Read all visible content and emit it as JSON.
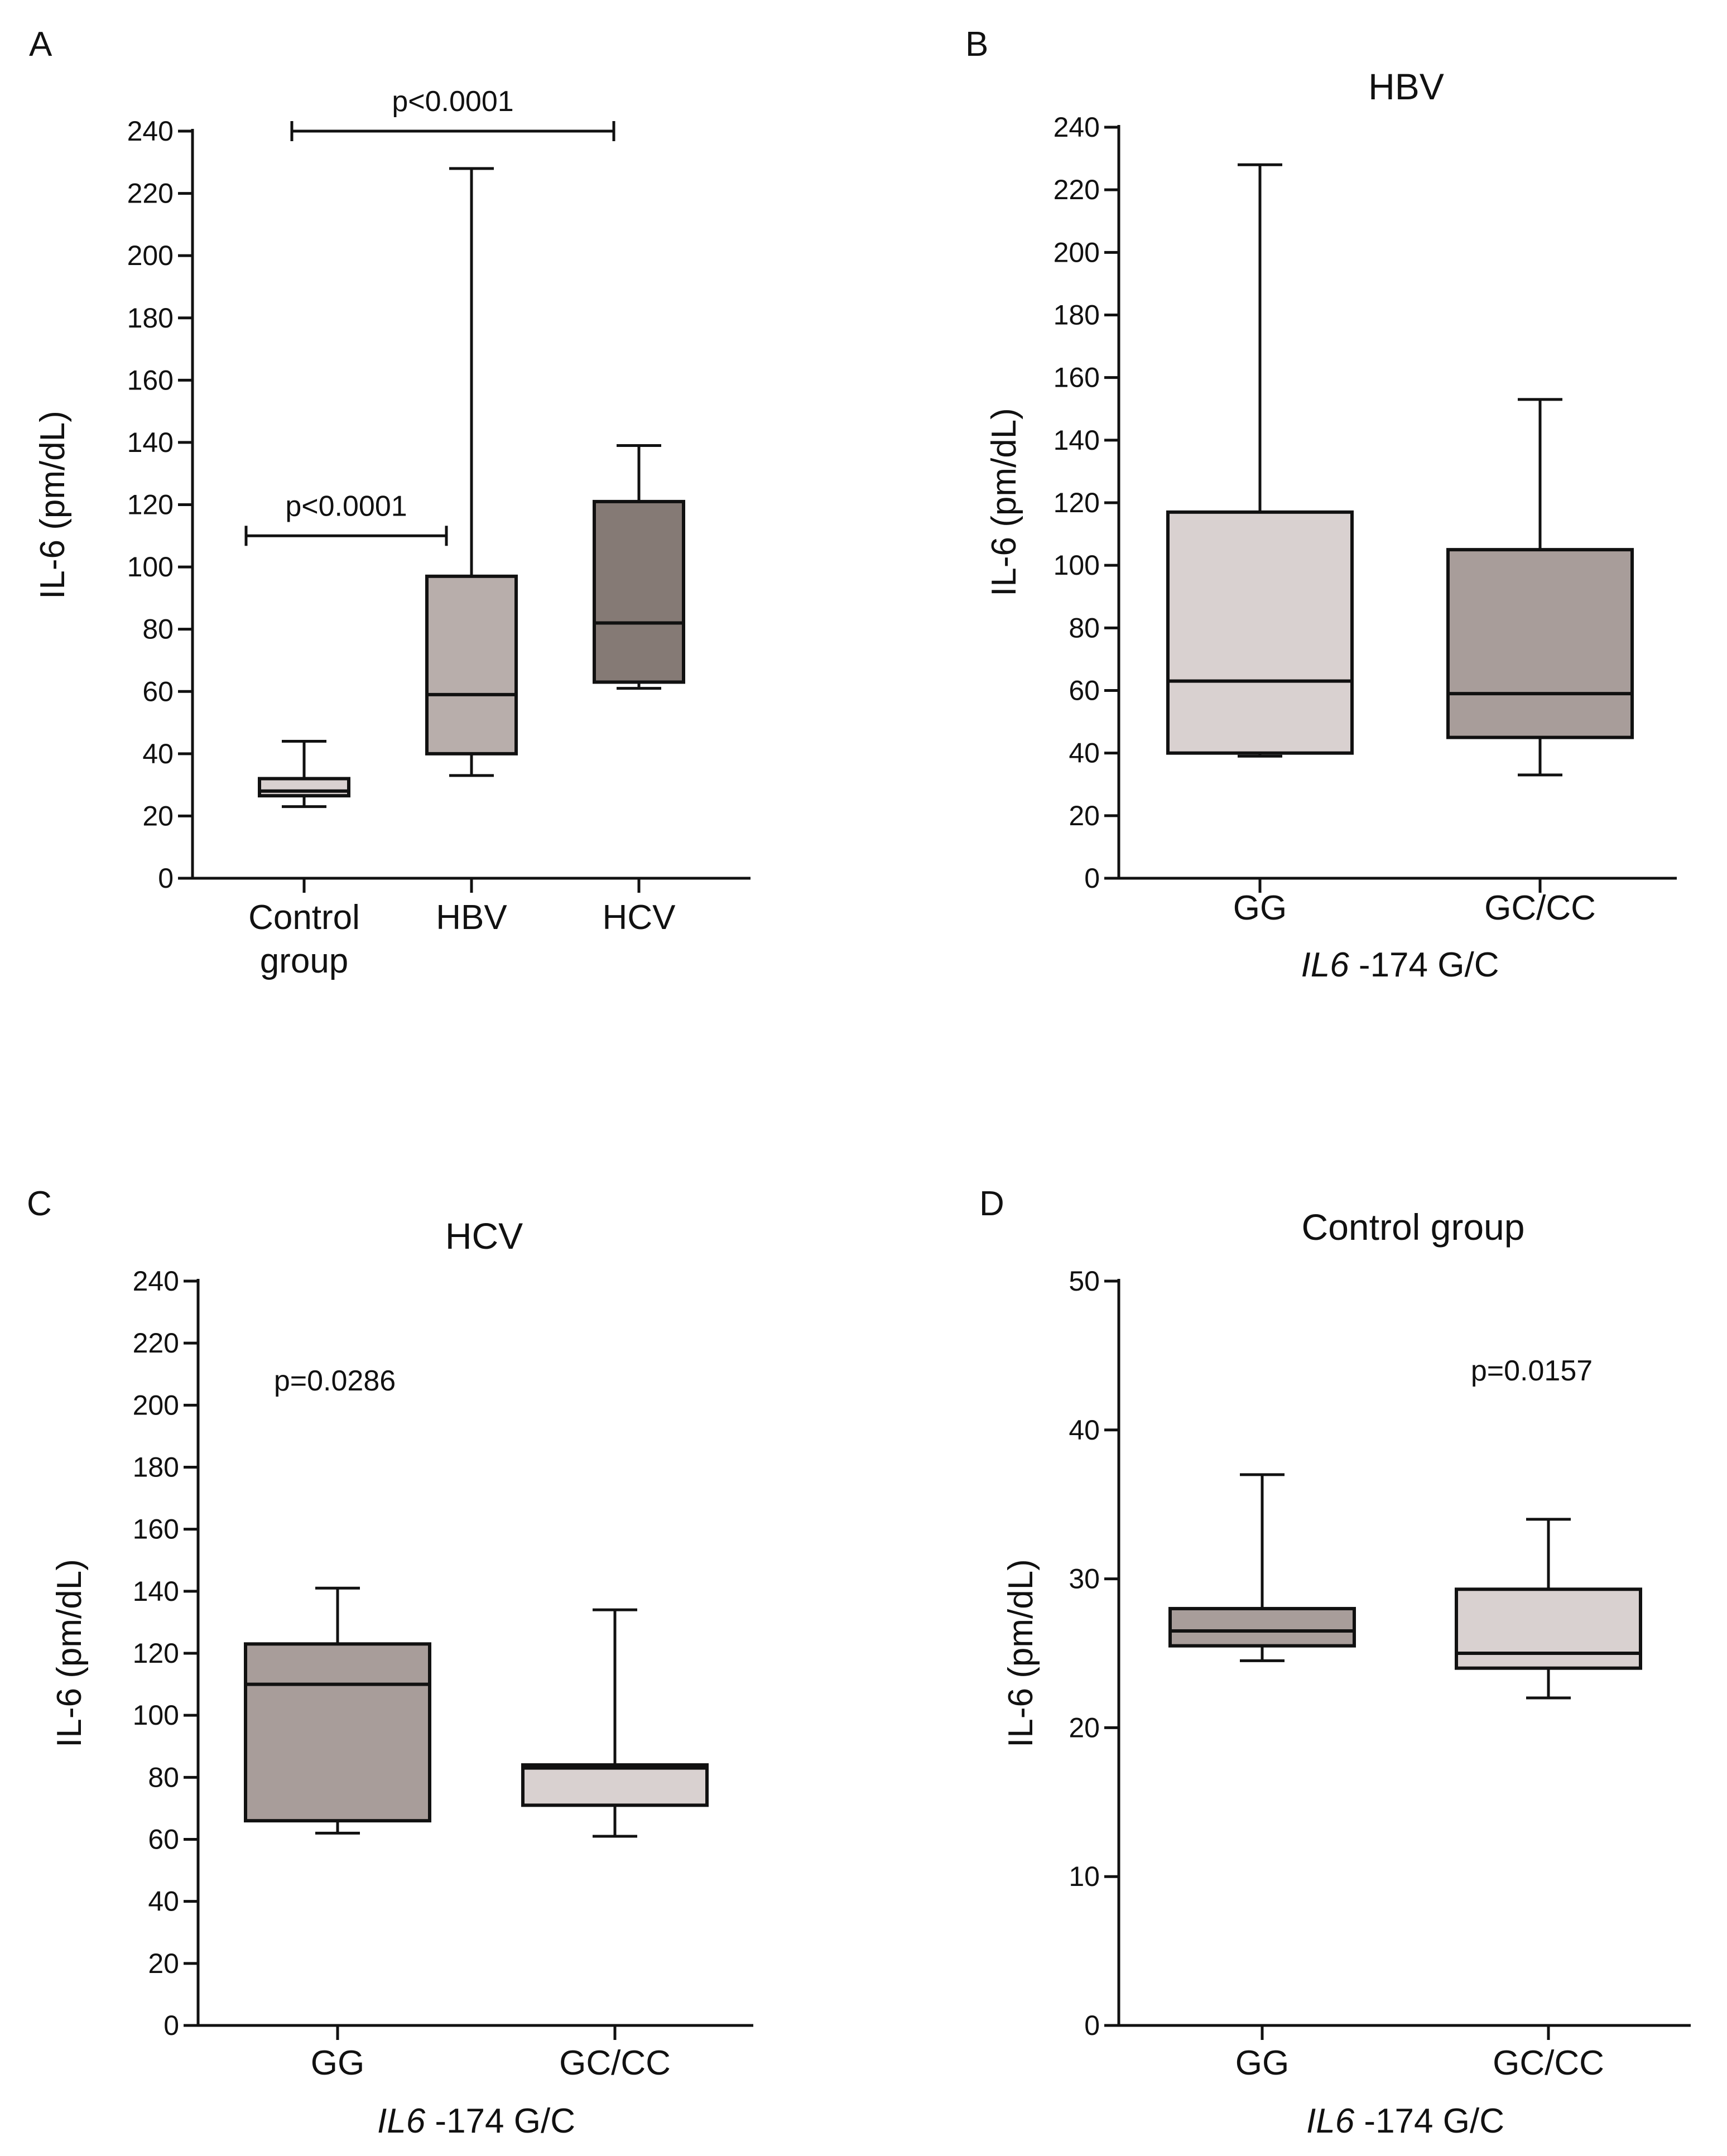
{
  "figure": {
    "background": "#ffffff",
    "line_color": "#111111"
  },
  "chart_data": [
    {
      "panel": "A",
      "type": "boxplot",
      "title": "",
      "xlabel": "",
      "ylabel": "IL-6 (pm/dL)",
      "ylim": [
        0,
        240
      ],
      "yticks": [
        0,
        20,
        40,
        60,
        80,
        100,
        120,
        140,
        160,
        180,
        200,
        220,
        240
      ],
      "categories": [
        [
          "Control",
          "group"
        ],
        [
          "HBV"
        ],
        [
          "HCV"
        ]
      ],
      "boxes": [
        {
          "name": "Control group",
          "min": 23,
          "q1": 26.5,
          "median": 28,
          "q3": 32,
          "max": 44,
          "color": "#d9d1d0"
        },
        {
          "name": "HBV",
          "min": 33,
          "q1": 40,
          "median": 59,
          "q3": 97,
          "max": 228,
          "color": "#b8aeab"
        },
        {
          "name": "HCV",
          "min": 61,
          "q1": 63,
          "median": 82,
          "q3": 121,
          "max": 139,
          "color": "#857a75"
        }
      ],
      "annotations": [
        {
          "text": "p<0.0001",
          "from": 0,
          "to": 2,
          "y": 240
        },
        {
          "text": "p<0.0001",
          "from": 0,
          "to": 1,
          "y": 110
        }
      ]
    },
    {
      "panel": "B",
      "type": "boxplot",
      "title": "HBV",
      "xlabel_italic": "IL6",
      "xlabel_rest": " -174 G/C",
      "ylabel": "IL-6 (pm/dL)",
      "ylim": [
        0,
        240
      ],
      "yticks": [
        0,
        20,
        40,
        60,
        80,
        100,
        120,
        140,
        160,
        180,
        200,
        220,
        240
      ],
      "categories": [
        [
          "GG"
        ],
        [
          "GC/CC"
        ]
      ],
      "boxes": [
        {
          "name": "GG",
          "min": 39,
          "q1": 40,
          "median": 63,
          "q3": 117,
          "max": 228,
          "color": "#d9d1d0"
        },
        {
          "name": "GC/CC",
          "min": 33,
          "q1": 45,
          "median": 59,
          "q3": 105,
          "max": 153,
          "color": "#a89d9a"
        }
      ],
      "annotations": []
    },
    {
      "panel": "C",
      "type": "boxplot",
      "title": "HCV",
      "xlabel_italic": "IL6",
      "xlabel_rest": " -174 G/C",
      "ylabel": "IL-6 (pm/dL)",
      "ylim": [
        0,
        240
      ],
      "yticks": [
        0,
        20,
        40,
        60,
        80,
        100,
        120,
        140,
        160,
        180,
        200,
        220,
        240
      ],
      "categories": [
        [
          "GG"
        ],
        [
          "GC/CC"
        ]
      ],
      "boxes": [
        {
          "name": "GG",
          "min": 62,
          "q1": 66,
          "median": 110,
          "q3": 123,
          "max": 141,
          "color": "#a89d9a"
        },
        {
          "name": "GC/CC",
          "min": 61,
          "q1": 71,
          "median": 83,
          "q3": 84,
          "max": 134,
          "color": "#d9d1d0"
        }
      ],
      "annotations": [
        {
          "text": "p=0.0286",
          "at": 0.5,
          "y": 208
        }
      ]
    },
    {
      "panel": "D",
      "type": "boxplot",
      "title": "Control group",
      "xlabel_italic": "IL6",
      "xlabel_rest": " -174 G/C",
      "ylabel": "IL-6 (pm/dL)",
      "ylim": [
        0,
        50
      ],
      "yticks": [
        0,
        10,
        20,
        30,
        40,
        50
      ],
      "categories": [
        [
          "GG"
        ],
        [
          "GC/CC"
        ]
      ],
      "boxes": [
        {
          "name": "GG",
          "min": 24.5,
          "q1": 25.5,
          "median": 26.5,
          "q3": 28,
          "max": 37,
          "color": "#a89d9a"
        },
        {
          "name": "GC/CC",
          "min": 22,
          "q1": 24,
          "median": 25,
          "q3": 29.3,
          "max": 34,
          "color": "#d9d1d0"
        }
      ],
      "annotations": [
        {
          "text": "p=0.0157",
          "at": 1.5,
          "y": 44
        }
      ]
    }
  ]
}
